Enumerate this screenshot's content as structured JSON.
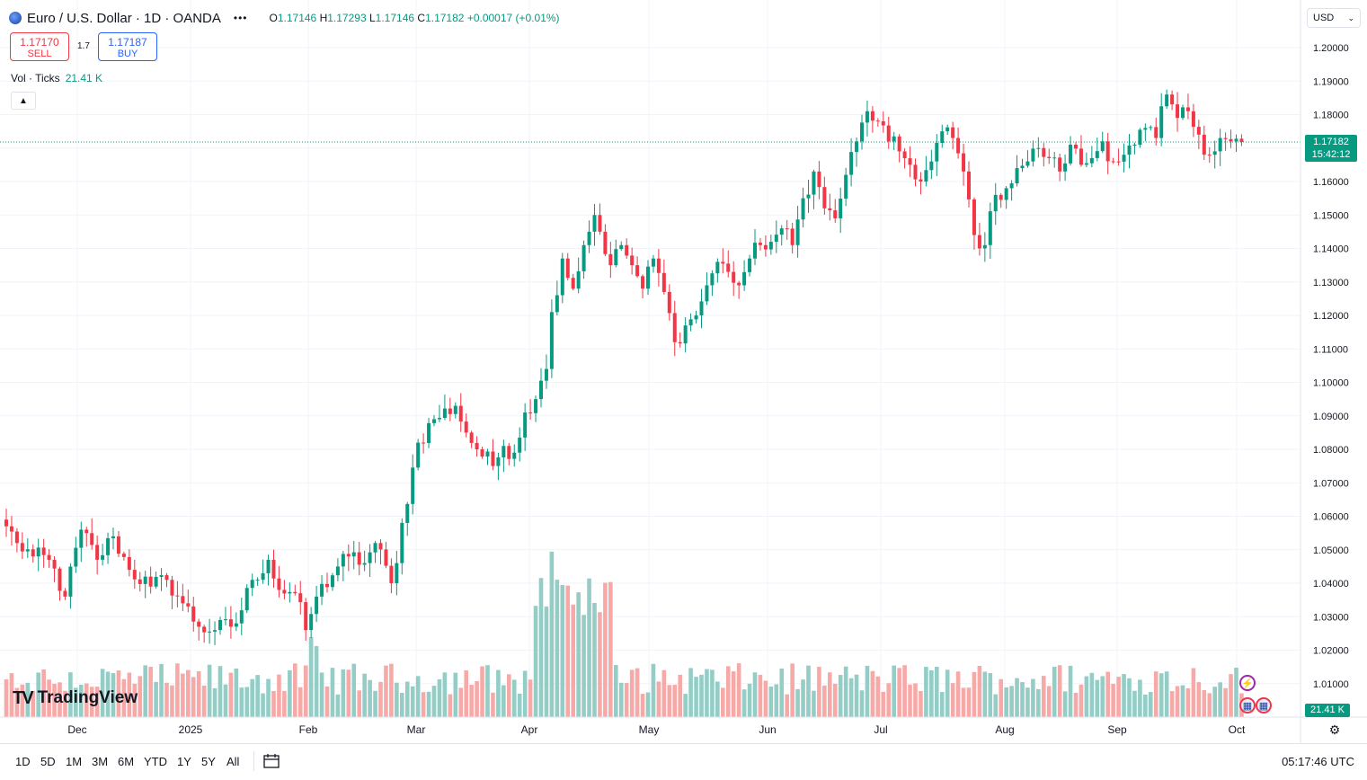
{
  "header": {
    "symbol": "Euro / U.S. Dollar · 1D · OANDA",
    "more": "•••",
    "ohlc": {
      "o_label": "O",
      "o": "1.17146",
      "h_label": "H",
      "h": "1.17293",
      "l_label": "L",
      "l": "1.17146",
      "c_label": "C",
      "c": "1.17182",
      "change": "+0.00017 (+0.01%)"
    }
  },
  "trade": {
    "sell_price": "1.17170",
    "sell_label": "SELL",
    "spread": "1.7",
    "buy_price": "1.17187",
    "buy_label": "BUY"
  },
  "volume": {
    "label": "Vol · Ticks",
    "value": "21.41 K",
    "badge": "21.41 K"
  },
  "currency": "USD",
  "price_badge": {
    "price": "1.17182",
    "countdown": "15:42:12"
  },
  "logo": "TradingView",
  "bottom": {
    "ranges": [
      "1D",
      "5D",
      "1M",
      "3M",
      "6M",
      "YTD",
      "1Y",
      "5Y",
      "All"
    ],
    "time": "05:17:46 UTC"
  },
  "colors": {
    "up": "#089981",
    "down": "#f23645",
    "up_vol": "#93cdc6",
    "down_vol": "#f7a9a7"
  },
  "chart_data": {
    "type": "candlestick",
    "title": "Euro / U.S. Dollar · 1D · OANDA",
    "y_ticks": [
      "1.20000",
      "1.19000",
      "1.18000",
      "1.17000",
      "1.16000",
      "1.15000",
      "1.14000",
      "1.13000",
      "1.12000",
      "1.11000",
      "1.10000",
      "1.09000",
      "1.08000",
      "1.07000",
      "1.06000",
      "1.05000",
      "1.04000",
      "1.03000",
      "1.02000",
      "1.01000"
    ],
    "x_labels": [
      "Dec",
      "2025",
      "Feb",
      "Mar",
      "Apr",
      "May",
      "Jun",
      "Jul",
      "Aug",
      "Sep",
      "Oct"
    ],
    "ylim": [
      1.0,
      1.21
    ],
    "last_price": 1.17182,
    "anchors": [
      [
        0,
        1.057
      ],
      [
        2,
        1.052
      ],
      [
        5,
        1.048
      ],
      [
        8,
        1.047
      ],
      [
        11,
        1.036
      ],
      [
        14,
        1.056
      ],
      [
        17,
        1.047
      ],
      [
        20,
        1.054
      ],
      [
        23,
        1.044
      ],
      [
        27,
        1.039
      ],
      [
        30,
        1.041
      ],
      [
        33,
        1.034
      ],
      [
        36,
        1.027
      ],
      [
        39,
        1.026
      ],
      [
        43,
        1.028
      ],
      [
        46,
        1.041
      ],
      [
        49,
        1.047
      ],
      [
        51,
        1.038
      ],
      [
        54,
        1.037
      ],
      [
        56,
        1.026
      ],
      [
        58,
        1.036
      ],
      [
        62,
        1.045
      ],
      [
        64,
        1.048
      ],
      [
        67,
        1.046
      ],
      [
        69,
        1.052
      ],
      [
        72,
        1.04
      ],
      [
        73,
        1.046
      ],
      [
        74,
        1.058
      ],
      [
        77,
        1.082
      ],
      [
        80,
        1.089
      ],
      [
        84,
        1.093
      ],
      [
        86,
        1.085
      ],
      [
        88,
        1.08
      ],
      [
        91,
        1.075
      ],
      [
        93,
        1.081
      ],
      [
        95,
        1.079
      ],
      [
        97,
        1.091
      ],
      [
        99,
        1.095
      ],
      [
        101,
        1.104
      ],
      [
        102,
        1.121
      ],
      [
        104,
        1.137
      ],
      [
        106,
        1.128
      ],
      [
        108,
        1.141
      ],
      [
        110,
        1.15
      ],
      [
        111,
        1.145
      ],
      [
        113,
        1.135
      ],
      [
        115,
        1.141
      ],
      [
        117,
        1.135
      ],
      [
        119,
        1.128
      ],
      [
        121,
        1.137
      ],
      [
        123,
        1.127
      ],
      [
        125,
        1.112
      ],
      [
        127,
        1.117
      ],
      [
        129,
        1.12
      ],
      [
        131,
        1.129
      ],
      [
        133,
        1.136
      ],
      [
        135,
        1.133
      ],
      [
        137,
        1.129
      ],
      [
        139,
        1.137
      ],
      [
        141,
        1.141
      ],
      [
        143,
        1.142
      ],
      [
        145,
        1.146
      ],
      [
        147,
        1.141
      ],
      [
        149,
        1.155
      ],
      [
        151,
        1.163
      ],
      [
        153,
        1.152
      ],
      [
        155,
        1.149
      ],
      [
        157,
        1.162
      ],
      [
        159,
        1.172
      ],
      [
        161,
        1.181
      ],
      [
        163,
        1.178
      ],
      [
        165,
        1.172
      ],
      [
        167,
        1.169
      ],
      [
        169,
        1.165
      ],
      [
        171,
        1.16
      ],
      [
        173,
        1.166
      ],
      [
        175,
        1.175
      ],
      [
        177,
        1.173
      ],
      [
        179,
        1.163
      ],
      [
        181,
        1.144
      ],
      [
        183,
        1.141
      ],
      [
        185,
        1.156
      ],
      [
        187,
        1.158
      ],
      [
        189,
        1.164
      ],
      [
        191,
        1.166
      ],
      [
        193,
        1.17
      ],
      [
        195,
        1.167
      ],
      [
        197,
        1.163
      ],
      [
        199,
        1.171
      ],
      [
        201,
        1.165
      ],
      [
        203,
        1.167
      ],
      [
        205,
        1.172
      ],
      [
        207,
        1.166
      ],
      [
        209,
        1.168
      ],
      [
        211,
        1.171
      ],
      [
        213,
        1.176
      ],
      [
        215,
        1.173
      ],
      [
        217,
        1.186
      ],
      [
        219,
        1.179
      ],
      [
        221,
        1.181
      ],
      [
        223,
        1.174
      ],
      [
        225,
        1.168
      ],
      [
        227,
        1.173
      ],
      [
        229,
        1.172
      ],
      [
        231,
        1.1718
      ]
    ],
    "volumes": [
      0.5,
      0.2,
      0.8,
      0.88
    ]
  }
}
